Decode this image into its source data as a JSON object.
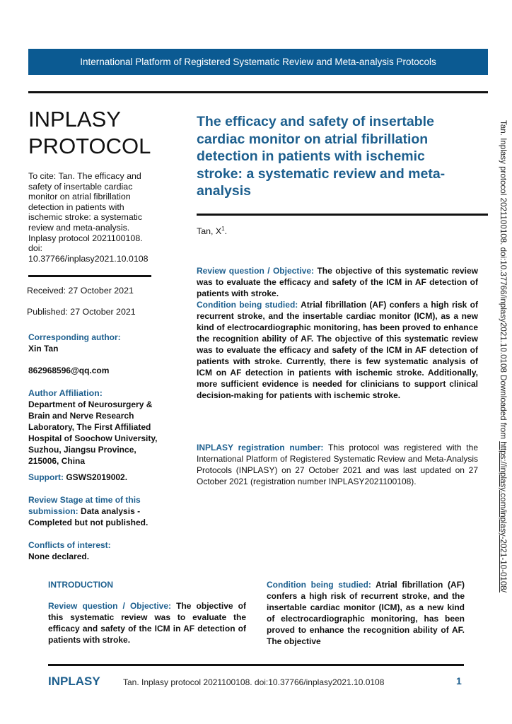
{
  "banner": "International Platform of Registered Systematic Review and Meta-analysis Protocols",
  "brand": {
    "line1": "INPLASY",
    "line2": "PROTOCOL"
  },
  "citation": "To cite: Tan. The efficacy and safety of insertable cardiac monitor on atrial fibrillation detection in patients with ischemic stroke: a systematic review and meta-analysis. Inplasy protocol 2021100108. doi: 10.37766/inplasy2021.10.0108",
  "dates": {
    "received": "Received: 27 October 2021",
    "published": "Published: 27 October 2021"
  },
  "sidebar": {
    "corresponding_label": "Corresponding author:",
    "corresponding_name": "Xin Tan",
    "email": "862968596@qq.com",
    "affiliation_label": "Author Affiliation:",
    "affiliation": "Department of Neurosurgery & Brain and Nerve Research Laboratory, The First Affiliated Hospital of Soochow University, Suzhou, Jiangsu Province, 215006, China",
    "support_label": "Support:",
    "support": "GSWS2019002.",
    "stage_label": "Review Stage at time of this submission:",
    "stage": "Data analysis - Completed but not published.",
    "conflicts_label": "Conflicts of interest:",
    "conflicts": "None declared."
  },
  "title": "The efficacy and safety of insertable cardiac monitor on atrial fibrillation detection in patients with ischemic stroke: a systematic review and meta-analysis",
  "author": "Tan, X",
  "author_sup": "1",
  "author_end": ".",
  "abstract": {
    "rq_label": "Review question / Objective:",
    "rq": "The objective of this systematic review was to evaluate the efficacy and safety of the ICM in AF detection of patients with stroke.",
    "cond_label": "Condition being studied:",
    "cond": "Atrial fibrillation (AF) confers a high risk of recurrent stroke, and the insertable cardiac monitor (ICM), as a new kind of electrocardiographic monitoring, has been proved to enhance the recognition ability of AF. The objective of this systematic review was to evaluate the efficacy and safety of the ICM in AF detection of patients with stroke. Currently, there is few systematic analysis of ICM on AF detection in patients with ischemic stroke. Additionally, more sufficient evidence is needed for clinicians to support clinical decision-making for patients with ischemic stroke.",
    "reg_label": "INPLASY registration number:",
    "reg": "This protocol was registered with the International Platform of Registered Systematic Review and Meta-Analysis Protocols (INPLASY) on 27 October 2021 and was last updated on 27 October 2021 (registration number INPLASY2021100108)."
  },
  "intro": {
    "heading": "INTRODUCTION",
    "rq_label": "Review question / Objective:",
    "rq": "The objective of this systematic review was to evaluate the efficacy and safety of the ICM in AF detection of patients with stroke.",
    "cond_label": "Condition being studied:",
    "cond": "Atrial fibrillation (AF) confers a high risk of recurrent stroke, and the insertable cardiac monitor (ICM), as a new kind of electrocardiographic monitoring, has been proved to enhance the recognition ability of AF. The objective"
  },
  "vertical": {
    "text": "Tan. Inplasy protocol 2021100108. doi:10.37766/inplasy2021.10.0108 Downloaded from ",
    "link": "https://inplasy.com/inplasy-2021-10-0108/"
  },
  "footer": {
    "brand": "INPLASY",
    "citation": "Tan. Inplasy protocol 2021100108. doi:10.37766/inplasy2021.10.0108",
    "page": "1"
  },
  "colors": {
    "banner": "#0b5a92",
    "heading": "#1d5f8e"
  }
}
